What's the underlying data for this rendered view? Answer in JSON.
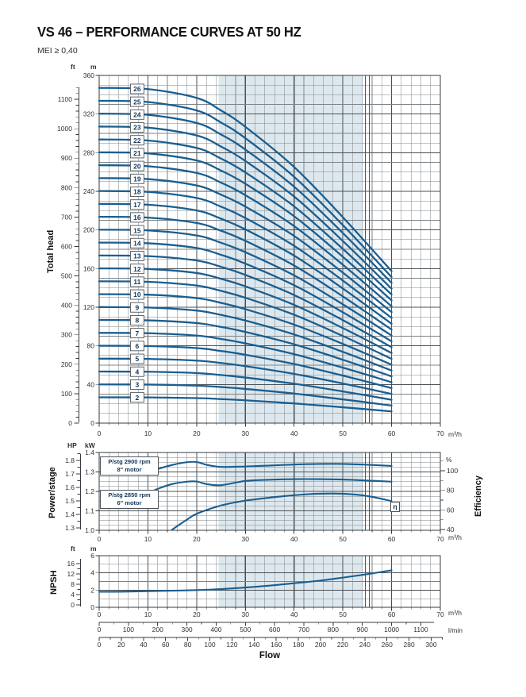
{
  "header": {
    "title": "VS 46 – PERFORMANCE CURVES AT 50 HZ",
    "subtitle": "MEI ≥ 0,40"
  },
  "colors": {
    "curve": "#1a5e90",
    "duty_band": "#dde8ee",
    "grid_minor": "#7d8387",
    "grid_major": "#4b5055",
    "border": "#363c41",
    "text": "#2e3338",
    "stage_label": "#10365c"
  },
  "flow_axis": {
    "unit": "m³/h",
    "ticks": [
      0,
      10,
      20,
      30,
      40,
      50,
      60,
      70
    ],
    "max": 70,
    "minor_step": 2
  },
  "duty_band": {
    "from": 24.5,
    "to": 54,
    "limit_lines": [
      54.6,
      55.4
    ]
  },
  "chart_data": [
    {
      "type": "line",
      "id": "total-head",
      "ylabel": "Total head",
      "m_axis": {
        "unit": "m",
        "ticks": [
          0,
          40,
          80,
          120,
          160,
          200,
          240,
          280,
          320,
          360
        ],
        "max": 360,
        "minor_step": 10
      },
      "ft_axis": {
        "unit": "ft",
        "ticks": [
          0,
          100,
          200,
          300,
          400,
          500,
          600,
          700,
          800,
          900,
          1000,
          1100
        ],
        "max": 1140,
        "minor_step": 20
      },
      "stages": [
        2,
        3,
        4,
        5,
        6,
        7,
        8,
        9,
        10,
        11,
        12,
        13,
        14,
        15,
        16,
        17,
        18,
        19,
        20,
        21,
        22,
        23,
        24,
        25,
        26
      ],
      "per_stage_head_m": {
        "x": [
          0,
          10,
          20,
          25,
          30,
          40,
          50,
          60
        ],
        "m": [
          13.35,
          13.3,
          12.95,
          12.45,
          11.8,
          10.2,
          8.2,
          6.05
        ]
      },
      "curve_end_x": 60,
      "stage_label_at_x": 7.8
    },
    {
      "type": "line",
      "id": "power-stage",
      "ylabel": "Power/stage",
      "kw_axis": {
        "unit": "kW",
        "ticks": [
          1.0,
          1.1,
          1.2,
          1.3,
          1.4
        ],
        "min": 1.0,
        "max": 1.4,
        "minor_step": 0.025
      },
      "hp_axis": {
        "unit": "HP",
        "ticks": [
          1.3,
          1.4,
          1.5,
          1.6,
          1.7,
          1.8
        ],
        "minor_step": 0.05
      },
      "eff_axis": {
        "unit": "%",
        "label": "Efficiency",
        "ticks": [
          40,
          60,
          80,
          100
        ],
        "minor_step": 10,
        "max": 110
      },
      "series": [
        {
          "name": "power-8in-motor",
          "label_line1": "P/stg 2900 rpm",
          "label_line2": "8\" motor",
          "x": [
            10,
            12,
            15,
            18,
            20,
            22,
            25,
            30,
            35,
            40,
            45,
            50,
            55,
            60
          ],
          "kw": [
            1.295,
            1.315,
            1.336,
            1.35,
            1.351,
            1.337,
            1.326,
            1.328,
            1.333,
            1.338,
            1.341,
            1.341,
            1.337,
            1.331
          ]
        },
        {
          "name": "power-6in-motor",
          "label_line1": "P/stg 2850 rpm",
          "label_line2": "6\" motor",
          "x": [
            10,
            12,
            15,
            18,
            20,
            22,
            25,
            30,
            35,
            40,
            45,
            50,
            55,
            60
          ],
          "kw": [
            1.19,
            1.213,
            1.238,
            1.25,
            1.251,
            1.238,
            1.232,
            1.254,
            1.26,
            1.263,
            1.263,
            1.261,
            1.256,
            1.25
          ]
        },
        {
          "name": "efficiency",
          "label": "η",
          "x": [
            15,
            18,
            20,
            25,
            30,
            35,
            40,
            45,
            50,
            55,
            60
          ],
          "eff": [
            40,
            50,
            56,
            64.5,
            69.5,
            72.5,
            75,
            76.5,
            76.5,
            74.2,
            69
          ]
        }
      ]
    },
    {
      "type": "line",
      "id": "npsh",
      "ylabel": "NPSH",
      "m_axis": {
        "unit": "m",
        "ticks": [
          0,
          2,
          4,
          6
        ],
        "max": 6,
        "minor_step": 1
      },
      "ft_axis": {
        "unit": "ft",
        "ticks": [
          0,
          4,
          8,
          12,
          16
        ],
        "max": 17,
        "minor_step": 2
      },
      "curve": {
        "x": [
          0,
          5,
          10,
          15,
          20,
          25,
          30,
          35,
          40,
          45,
          50,
          55,
          60
        ],
        "m": [
          1.8,
          1.82,
          1.87,
          1.93,
          2.0,
          2.12,
          2.3,
          2.52,
          2.8,
          3.08,
          3.45,
          3.85,
          4.3
        ]
      }
    }
  ],
  "bottom_scales": {
    "lmin": {
      "unit": "l/min",
      "ticks": [
        0,
        100,
        200,
        300,
        400,
        500,
        600,
        700,
        800,
        900,
        1000,
        1100
      ],
      "minor_step": 50
    },
    "us_gpm": {
      "ticks": [
        0,
        20,
        40,
        60,
        80,
        100,
        120,
        140,
        160,
        180,
        200,
        220,
        240,
        260,
        280,
        300
      ],
      "minor_step": 10
    },
    "label": "Flow"
  }
}
